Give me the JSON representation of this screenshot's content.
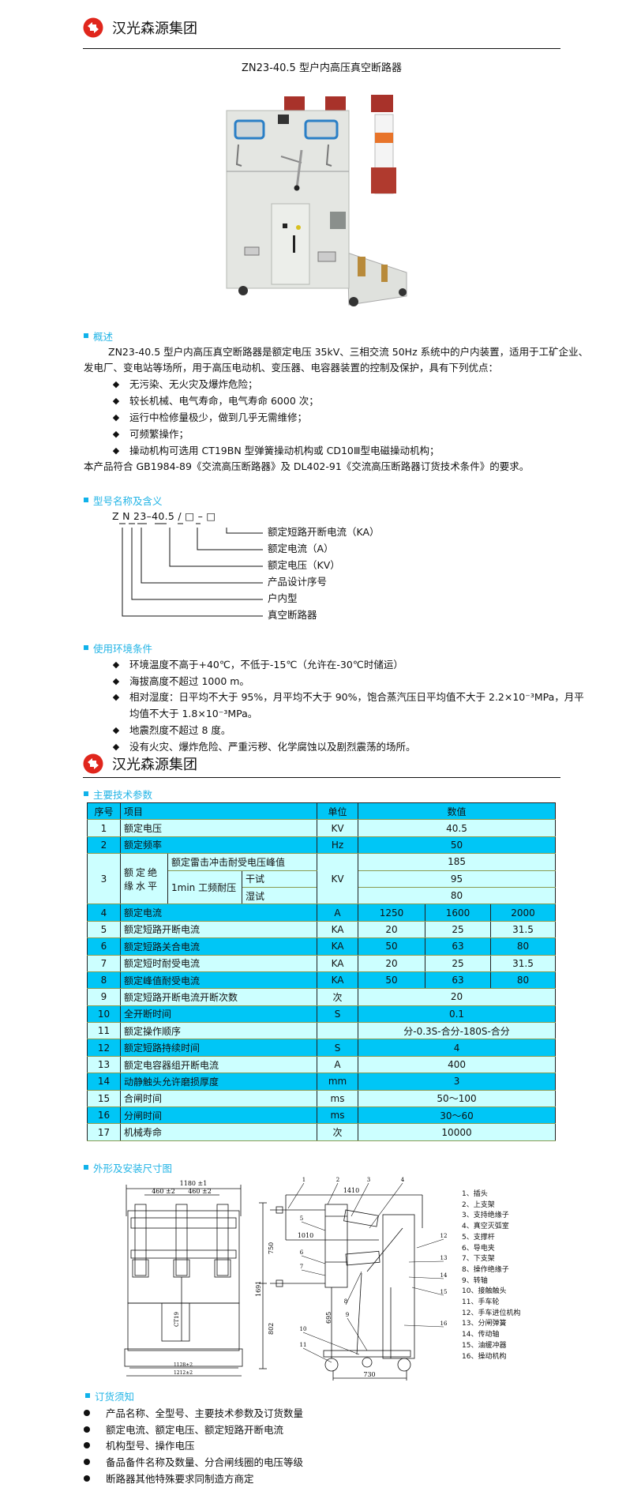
{
  "brand": {
    "name": "汉光森源集团",
    "logo_color": "#e0261c"
  },
  "title": "ZN23-40.5 型户内高压真空断路器",
  "overview": {
    "heading": "概述",
    "intro_line1": "ZN23-40.5 型户内高压真空断路器是额定电压 35kV、三相交流 50Hz 系统中的户内装置，适用于工矿企业、",
    "intro_line2": "发电厂、变电站等场所，用于高压电动机、变压器、电容器装置的控制及保护，具有下列优点：",
    "bullets": [
      "无污染、无火灾及爆炸危险；",
      "较长机械、电气寿命，电气寿命 6000 次；",
      "运行中检修量极少，做到几乎无需维修；",
      "可频繁操作；",
      "操动机构可选用 CT19BN 型弹簧操动机构或 CD10Ⅲ型电磁操动机构；"
    ],
    "conformance": "本产品符合 GB1984-89《交流高压断路器》及 DL402-91《交流高压断路器订货技术条件》的要求。"
  },
  "model": {
    "heading": "型号名称及含义",
    "code": "Z N 23–40.5 / □ – □",
    "meanings": [
      "额定短路开断电流（KA）",
      "额定电流（A）",
      "额定电压（KV）",
      "产品设计序号",
      "户内型",
      "真空断路器"
    ]
  },
  "environment": {
    "heading": "使用环境条件",
    "bullets": [
      "环境温度不高于+40℃，不低于-15℃（允许在-30℃时储运）",
      "海拔高度不超过 1000 m。",
      "相对湿度：日平均不大于 95%，月平均不大于 90%，饱合蒸汽压日平均值不大于 2.2×10⁻³MPa，月平",
      "地震烈度不超过 8 度。",
      "没有火灾、爆炸危险、严重污秽、化学腐蚀以及剧烈震荡的场所。"
    ],
    "bullet3_cont": "均值不大于 1.8×10⁻³MPa。"
  },
  "specs": {
    "heading": "主要技术参数",
    "colors": {
      "header": "#00c6f6",
      "alt": "#ccffff"
    },
    "header": [
      "序号",
      "项目",
      "单位",
      "数值"
    ],
    "row3": {
      "no": "3",
      "item": "额定绝缘水平",
      "sub1": "额定雷击冲击耐受电压峰值",
      "sub2": "1min 工频耐压",
      "dry": "干试",
      "wet": "湿试",
      "unit": "KV",
      "v1": "185",
      "v2": "95",
      "v3": "80"
    },
    "rows": [
      {
        "no": "1",
        "item": "额定电压",
        "unit": "KV",
        "values": [
          "40.5"
        ]
      },
      {
        "no": "2",
        "item": "额定频率",
        "unit": "Hz",
        "values": [
          "50"
        ]
      },
      {
        "no": "4",
        "item": "额定电流",
        "unit": "A",
        "values": [
          "1250",
          "1600",
          "2000"
        ]
      },
      {
        "no": "5",
        "item": "额定短路开断电流",
        "unit": "KA",
        "values": [
          "20",
          "25",
          "31.5"
        ]
      },
      {
        "no": "6",
        "item": "额定短路关合电流",
        "unit": "KA",
        "values": [
          "50",
          "63",
          "80"
        ]
      },
      {
        "no": "7",
        "item": "额定短时耐受电流",
        "unit": "KA",
        "values": [
          "20",
          "25",
          "31.5"
        ]
      },
      {
        "no": "8",
        "item": "额定峰值耐受电流",
        "unit": "KA",
        "values": [
          "50",
          "63",
          "80"
        ]
      },
      {
        "no": "9",
        "item": "额定短路开断电流开断次数",
        "unit": "次",
        "values": [
          "20"
        ]
      },
      {
        "no": "10",
        "item": "全开断时间",
        "unit": "S",
        "values": [
          "0.1"
        ]
      },
      {
        "no": "11",
        "item": "额定操作顺序",
        "unit": "",
        "values": [
          "分-0.3S-合分-180S-合分"
        ]
      },
      {
        "no": "12",
        "item": "额定短路持续时间",
        "unit": "S",
        "values": [
          "4"
        ]
      },
      {
        "no": "13",
        "item": "额定电容器组开断电流",
        "unit": "A",
        "values": [
          "400"
        ]
      },
      {
        "no": "14",
        "item": "动静触头允许磨损厚度",
        "unit": "mm",
        "values": [
          "3"
        ]
      },
      {
        "no": "15",
        "item": "合闸时间",
        "unit": "ms",
        "values": [
          "50～100"
        ]
      },
      {
        "no": "16",
        "item": "分闸时间",
        "unit": "ms",
        "values": [
          "30～60"
        ]
      },
      {
        "no": "17",
        "item": "机械寿命",
        "unit": "次",
        "values": [
          "10000"
        ]
      }
    ]
  },
  "drawing": {
    "heading": "外形及安装尺寸图",
    "front": {
      "width": "1180 ±1",
      "pitch1": "460 ±2",
      "pitch2": "460 ±2",
      "ct": "CT19",
      "wheel_inner": "1128±2",
      "wheel_outer": "1212±2",
      "upper": "750",
      "total": "1691",
      "lower": "802"
    },
    "side": {
      "depth_top": "1410",
      "depth_mid": "1010",
      "height": "695",
      "base": "730"
    },
    "callouts": [
      "1",
      "2",
      "3",
      "4",
      "5",
      "6",
      "7",
      "8",
      "9",
      "10",
      "11",
      "12",
      "13",
      "14",
      "15",
      "16"
    ],
    "legend": [
      "1、插头",
      "2、上支架",
      "3、支持绝缘子",
      "4、真空灭弧室",
      "5、支撑杆",
      "6、导电夹",
      "7、下支架",
      "8、操作绝缘子",
      "9、转轴",
      "10、接触触头",
      "11、手车轮",
      "12、手车进位机构",
      "13、分闸弹簧",
      "14、传动轴",
      "15、油缓冲器",
      "16、操动机构"
    ]
  },
  "ordering": {
    "heading": "订货须知",
    "bullets": [
      "产品名称、全型号、主要技术参数及订货数量",
      "额定电流、额定电压、额定短路开断电流",
      "机构型号、操作电压",
      "备品备件名称及数量、分合闸线圈的电压等级",
      "断路器其他特殊要求同制造方商定"
    ]
  }
}
